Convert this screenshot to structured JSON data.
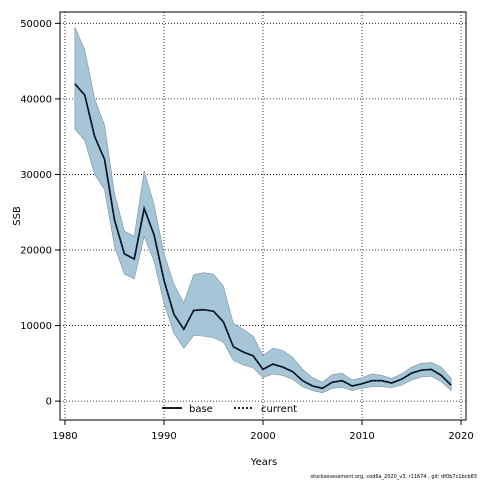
{
  "chart_data": {
    "type": "line",
    "xlabel": "Years",
    "ylabel": "SSB",
    "xlim": [
      1979.5,
      2020.5
    ],
    "ylim": [
      -2500,
      51500
    ],
    "xticks": [
      1980,
      1990,
      2000,
      2010,
      2020
    ],
    "yticks": [
      0,
      10000,
      20000,
      30000,
      40000,
      50000
    ],
    "grid": true,
    "legend_position": "bottom-center",
    "legend": [
      {
        "name": "base",
        "style": "solid",
        "color": "#000000"
      },
      {
        "name": "current",
        "style": "dotted",
        "color": "#000000"
      }
    ],
    "band_color": "#a6c6d8",
    "years": [
      1981,
      1982,
      1983,
      1984,
      1985,
      1986,
      1987,
      1988,
      1989,
      1990,
      1991,
      1992,
      1993,
      1994,
      1995,
      1996,
      1997,
      1998,
      1999,
      2000,
      2001,
      2002,
      2003,
      2004,
      2005,
      2006,
      2007,
      2008,
      2009,
      2010,
      2011,
      2012,
      2013,
      2014,
      2015,
      2016,
      2017,
      2018,
      2019
    ],
    "series": [
      {
        "name": "base",
        "values": [
          42000,
          40500,
          35000,
          32000,
          24000,
          19500,
          18800,
          25500,
          22000,
          16000,
          11500,
          9500,
          12000,
          12100,
          11900,
          10500,
          7200,
          6500,
          6000,
          4200,
          4900,
          4500,
          3900,
          2700,
          2000,
          1700,
          2500,
          2700,
          2000,
          2300,
          2700,
          2700,
          2400,
          2900,
          3700,
          4100,
          4200,
          3400,
          2100
        ]
      },
      {
        "name": "current",
        "values": [
          42000,
          40500,
          35000,
          32000,
          24000,
          19500,
          18800,
          25500,
          22000,
          16000,
          11500,
          9500,
          12000,
          12100,
          11900,
          10500,
          7200,
          6500,
          6000,
          4200,
          4900,
          4500,
          3900,
          2700,
          2000,
          1700,
          2500,
          2700,
          2000,
          2300,
          2700,
          2700,
          2400,
          2900,
          3700,
          4100,
          4200,
          3400,
          2100
        ]
      }
    ],
    "band_upper": [
      49500,
      46500,
      40000,
      36500,
      27500,
      22500,
      21800,
      30500,
      26000,
      19500,
      15500,
      13000,
      16700,
      17000,
      16800,
      15200,
      10300,
      9500,
      8600,
      6000,
      7000,
      6700,
      5800,
      4200,
      3100,
      2500,
      3500,
      3700,
      2800,
      3100,
      3600,
      3400,
      3000,
      3600,
      4500,
      5000,
      5100,
      4500,
      3000
    ],
    "band_lower": [
      36000,
      34500,
      30000,
      28000,
      20500,
      16800,
      16200,
      21800,
      18500,
      13000,
      9000,
      7000,
      8700,
      8600,
      8400,
      7800,
      5400,
      4800,
      4400,
      3100,
      3600,
      3400,
      2900,
      1900,
      1400,
      1100,
      1700,
      1800,
      1400,
      1700,
      1900,
      1900,
      1800,
      2100,
      2800,
      3200,
      3300,
      2600,
      1400
    ]
  },
  "footer_text": "stockassessment.org, cod6a_2020_v3, r11674 , git: df0b7c1bcb83"
}
